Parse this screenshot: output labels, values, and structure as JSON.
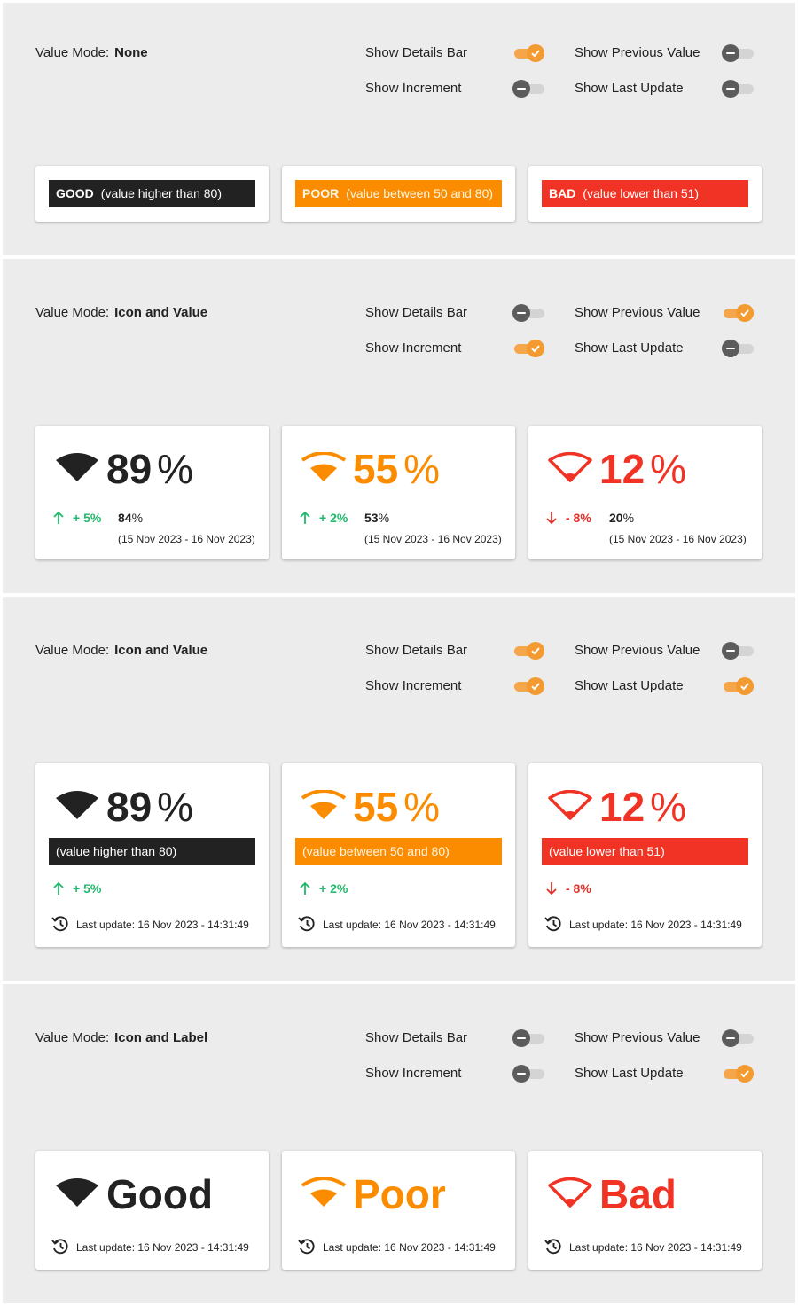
{
  "labels": {
    "value_mode": "Value Mode:",
    "show_details_bar": "Show Details Bar",
    "show_previous_value": "Show Previous Value",
    "show_increment": "Show Increment",
    "show_last_update": "Show Last Update"
  },
  "colors": {
    "good": "#222222",
    "poor": "#fb8c00",
    "bad": "#f03324",
    "toggle_on": "#f39a30",
    "toggle_off": "#5c5c5c",
    "increment_up": "#21b86b",
    "increment_down": "#e2302a",
    "panel_bg": "#ececec"
  },
  "icons": {
    "wifi": "wifi-signal-icon",
    "history": "history-icon",
    "arrow_up": "arrow-up-icon",
    "arrow_down": "arrow-down-icon",
    "check": "check-icon",
    "minus": "minus-icon"
  },
  "sections": [
    {
      "value_mode": "None",
      "toggles": {
        "show_details_bar": true,
        "show_previous_value": false,
        "show_increment": false,
        "show_last_update": false
      },
      "cards": [
        {
          "status": "GOOD",
          "condition": "(value higher than 80)"
        },
        {
          "status": "POOR",
          "condition": "(value between 50 and 80)"
        },
        {
          "status": "BAD",
          "condition": "(value lower than 51)"
        }
      ]
    },
    {
      "value_mode": "Icon and Value",
      "toggles": {
        "show_details_bar": false,
        "show_previous_value": true,
        "show_increment": true,
        "show_last_update": false
      },
      "cards": [
        {
          "value": "89",
          "unit": "%",
          "increment": "+ 5%",
          "direction": "up",
          "previous_value": "84",
          "previous_unit": "%",
          "range": "(15 Nov 2023 - 16 Nov 2023)"
        },
        {
          "value": "55",
          "unit": "%",
          "increment": "+ 2%",
          "direction": "up",
          "previous_value": "53",
          "previous_unit": "%",
          "range": "(15 Nov 2023 - 16 Nov 2023)"
        },
        {
          "value": "12",
          "unit": "%",
          "increment": "- 8%",
          "direction": "down",
          "previous_value": "20",
          "previous_unit": "%",
          "range": "(15 Nov 2023 - 16 Nov 2023)"
        }
      ]
    },
    {
      "value_mode": "Icon and Value",
      "toggles": {
        "show_details_bar": true,
        "show_previous_value": false,
        "show_increment": true,
        "show_last_update": true
      },
      "cards": [
        {
          "value": "89",
          "unit": "%",
          "details": "(value higher than 80)",
          "increment": "+ 5%",
          "direction": "up",
          "last_update": "Last update: 16 Nov 2023 - 14:31:49"
        },
        {
          "value": "55",
          "unit": "%",
          "details": "(value between 50 and 80)",
          "increment": "+ 2%",
          "direction": "up",
          "last_update": "Last update: 16 Nov 2023 - 14:31:49"
        },
        {
          "value": "12",
          "unit": "%",
          "details": "(value lower than 51)",
          "increment": "- 8%",
          "direction": "down",
          "last_update": "Last update: 16 Nov 2023 - 14:31:49"
        }
      ]
    },
    {
      "value_mode": "Icon and Label",
      "toggles": {
        "show_details_bar": false,
        "show_previous_value": false,
        "show_increment": false,
        "show_last_update": true
      },
      "cards": [
        {
          "label": "Good",
          "last_update": "Last update: 16 Nov 2023 - 14:31:49"
        },
        {
          "label": "Poor",
          "last_update": "Last update: 16 Nov 2023 - 14:31:49"
        },
        {
          "label": "Bad",
          "last_update": "Last update: 16 Nov 2023 - 14:31:49"
        }
      ]
    }
  ]
}
